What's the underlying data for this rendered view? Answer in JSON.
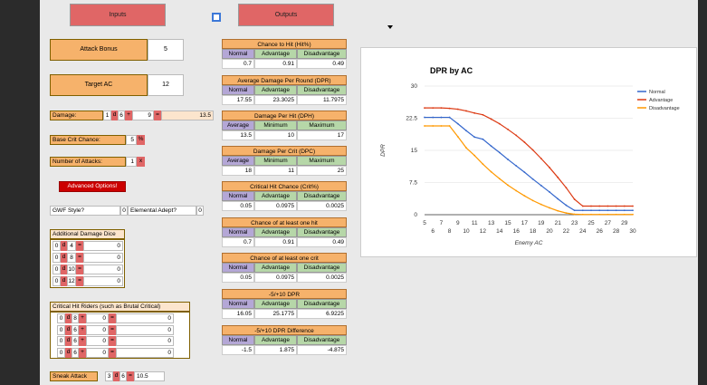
{
  "buttons": {
    "inputs": "Inputs",
    "outputs": "Outputs",
    "advanced": "Advanced Options!"
  },
  "inputs": {
    "attack_bonus_label": "Attack Bonus",
    "attack_bonus": "5",
    "target_ac_label": "Target AC",
    "target_ac": "12",
    "damage_label": "Damage:",
    "damage_n": "1",
    "damage_d": "d",
    "damage_die": "6",
    "damage_plus": "+",
    "damage_mod": "9",
    "damage_eq": "=",
    "damage_total": "13.5",
    "crit_label": "Base Crit Chance:",
    "crit_value": "5",
    "crit_pct": "%",
    "attacks_label": "Number of Attacks:",
    "attacks_value": "1",
    "attacks_x": "x",
    "gwf_label": "GWF Style?",
    "gwf_value": "0",
    "elemental_label": "Elemental Adept?",
    "elemental_value": "0",
    "add_dice_label": "Additional Damage Dice",
    "add_dice": [
      {
        "n": "0",
        "d": "d",
        "die": "4",
        "eq": "=",
        "v": "0"
      },
      {
        "n": "0",
        "d": "d",
        "die": "8",
        "eq": "=",
        "v": "0"
      },
      {
        "n": "0",
        "d": "d",
        "die": "10",
        "eq": "=",
        "v": "0"
      },
      {
        "n": "0",
        "d": "d",
        "die": "12",
        "eq": "=",
        "v": "0"
      }
    ],
    "crit_riders_label": "Critical Hit Riders (such as Brutal Critical)",
    "crit_riders": [
      {
        "n": "0",
        "d": "d",
        "die": "8",
        "p": "+",
        "m": "0",
        "eq": "=",
        "v": "0"
      },
      {
        "n": "0",
        "d": "d",
        "die": "6",
        "p": "+",
        "m": "0",
        "eq": "=",
        "v": "0"
      },
      {
        "n": "0",
        "d": "d",
        "die": "6",
        "p": "+",
        "m": "0",
        "eq": "=",
        "v": "0"
      },
      {
        "n": "0",
        "d": "d",
        "die": "6",
        "p": "+",
        "m": "0",
        "eq": "=",
        "v": "0"
      }
    ],
    "sneak_label": "Sneak Attack",
    "sneak_n": "3",
    "sneak_d": "d",
    "sneak_die": "6",
    "sneak_eq": "=",
    "sneak_total": "10.5"
  },
  "outputs": [
    {
      "title": "Chance to Hit (Hit%)",
      "heads": [
        "Normal",
        "Advantage",
        "Disadvantage"
      ],
      "vals": [
        "0.7",
        "0.91",
        "0.49"
      ]
    },
    {
      "title": "Average Damage Per Round (DPR)",
      "heads": [
        "Normal",
        "Advantage",
        "Disadvantage"
      ],
      "vals": [
        "17.55",
        "23.3025",
        "11.7975"
      ]
    },
    {
      "title": "Damage Per Hit (DPH)",
      "heads": [
        "Average",
        "Minimum",
        "Maximum"
      ],
      "vals": [
        "13.5",
        "10",
        "17"
      ]
    },
    {
      "title": "Damage Per Crit (DPC)",
      "heads": [
        "Average",
        "Minimum",
        "Maximum"
      ],
      "vals": [
        "18",
        "11",
        "25"
      ]
    },
    {
      "title": "Critical Hit Chance (Crit%)",
      "heads": [
        "Normal",
        "Advantage",
        "Disadvantage"
      ],
      "vals": [
        "0.05",
        "0.0975",
        "0.0025"
      ]
    },
    {
      "title": "Chance of at least one hit",
      "heads": [
        "Normal",
        "Advantage",
        "Disadvantage"
      ],
      "vals": [
        "0.7",
        "0.91",
        "0.49"
      ]
    },
    {
      "title": "Chance of at least one crit",
      "heads": [
        "Normal",
        "Advantage",
        "Disadvantage"
      ],
      "vals": [
        "0.05",
        "0.0975",
        "0.0025"
      ]
    },
    {
      "title": "-5/+10 DPR",
      "heads": [
        "Normal",
        "Advantage",
        "Disadvantage"
      ],
      "vals": [
        "16.05",
        "25.1775",
        "6.9225"
      ]
    },
    {
      "title": "-5/+10 DPR Difference",
      "heads": [
        "Normal",
        "Advantage",
        "Disadvantage"
      ],
      "vals": [
        "-1.5",
        "1.875",
        "-4.875"
      ]
    }
  ],
  "chart_data": {
    "type": "line",
    "title": "DPR by AC",
    "xlabel": "Enemy AC",
    "ylabel": "DPR",
    "ylim": [
      0,
      30
    ],
    "yticks": [
      "0",
      "7.5",
      "15",
      "22.5",
      "30"
    ],
    "x": [
      5,
      6,
      7,
      8,
      9,
      10,
      11,
      12,
      13,
      14,
      15,
      16,
      17,
      18,
      19,
      20,
      21,
      22,
      23,
      24,
      25,
      26,
      27,
      28,
      29,
      30
    ],
    "xticks_top": [
      "5",
      "7",
      "9",
      "11",
      "13",
      "15",
      "17",
      "19",
      "21",
      "23",
      "25",
      "27",
      "29"
    ],
    "xticks_bottom": [
      "6",
      "8",
      "10",
      "12",
      "14",
      "16",
      "18",
      "20",
      "22",
      "24",
      "26",
      "28",
      "30"
    ],
    "legend_position": "top-right",
    "series": [
      {
        "name": "Normal",
        "color": "#3366cc",
        "values": [
          22.7,
          22.7,
          22.7,
          22.7,
          21.2,
          19.6,
          18.1,
          17.6,
          16.0,
          14.5,
          12.9,
          11.4,
          9.9,
          8.3,
          6.8,
          5.3,
          3.7,
          2.2,
          1.0,
          1.0,
          1.0,
          1.0,
          1.0,
          1.0,
          1.0,
          1.0
        ]
      },
      {
        "name": "Advantage",
        "color": "#dc3912",
        "values": [
          24.9,
          24.9,
          24.9,
          24.8,
          24.6,
          24.2,
          23.7,
          23.3,
          22.3,
          21.2,
          19.9,
          18.5,
          16.9,
          15.1,
          13.1,
          11.0,
          8.7,
          6.3,
          3.6,
          2.0,
          2.0,
          2.0,
          2.0,
          2.0,
          2.0,
          2.0
        ]
      },
      {
        "name": "Disadvantage",
        "color": "#ff9900",
        "values": [
          20.7,
          20.7,
          20.7,
          20.7,
          18.2,
          15.6,
          13.8,
          11.8,
          10.0,
          8.4,
          6.9,
          5.6,
          4.4,
          3.3,
          2.4,
          1.6,
          0.9,
          0.4,
          0.1,
          0.05,
          0.05,
          0.05,
          0.05,
          0.05,
          0.05,
          0.05
        ]
      }
    ]
  }
}
